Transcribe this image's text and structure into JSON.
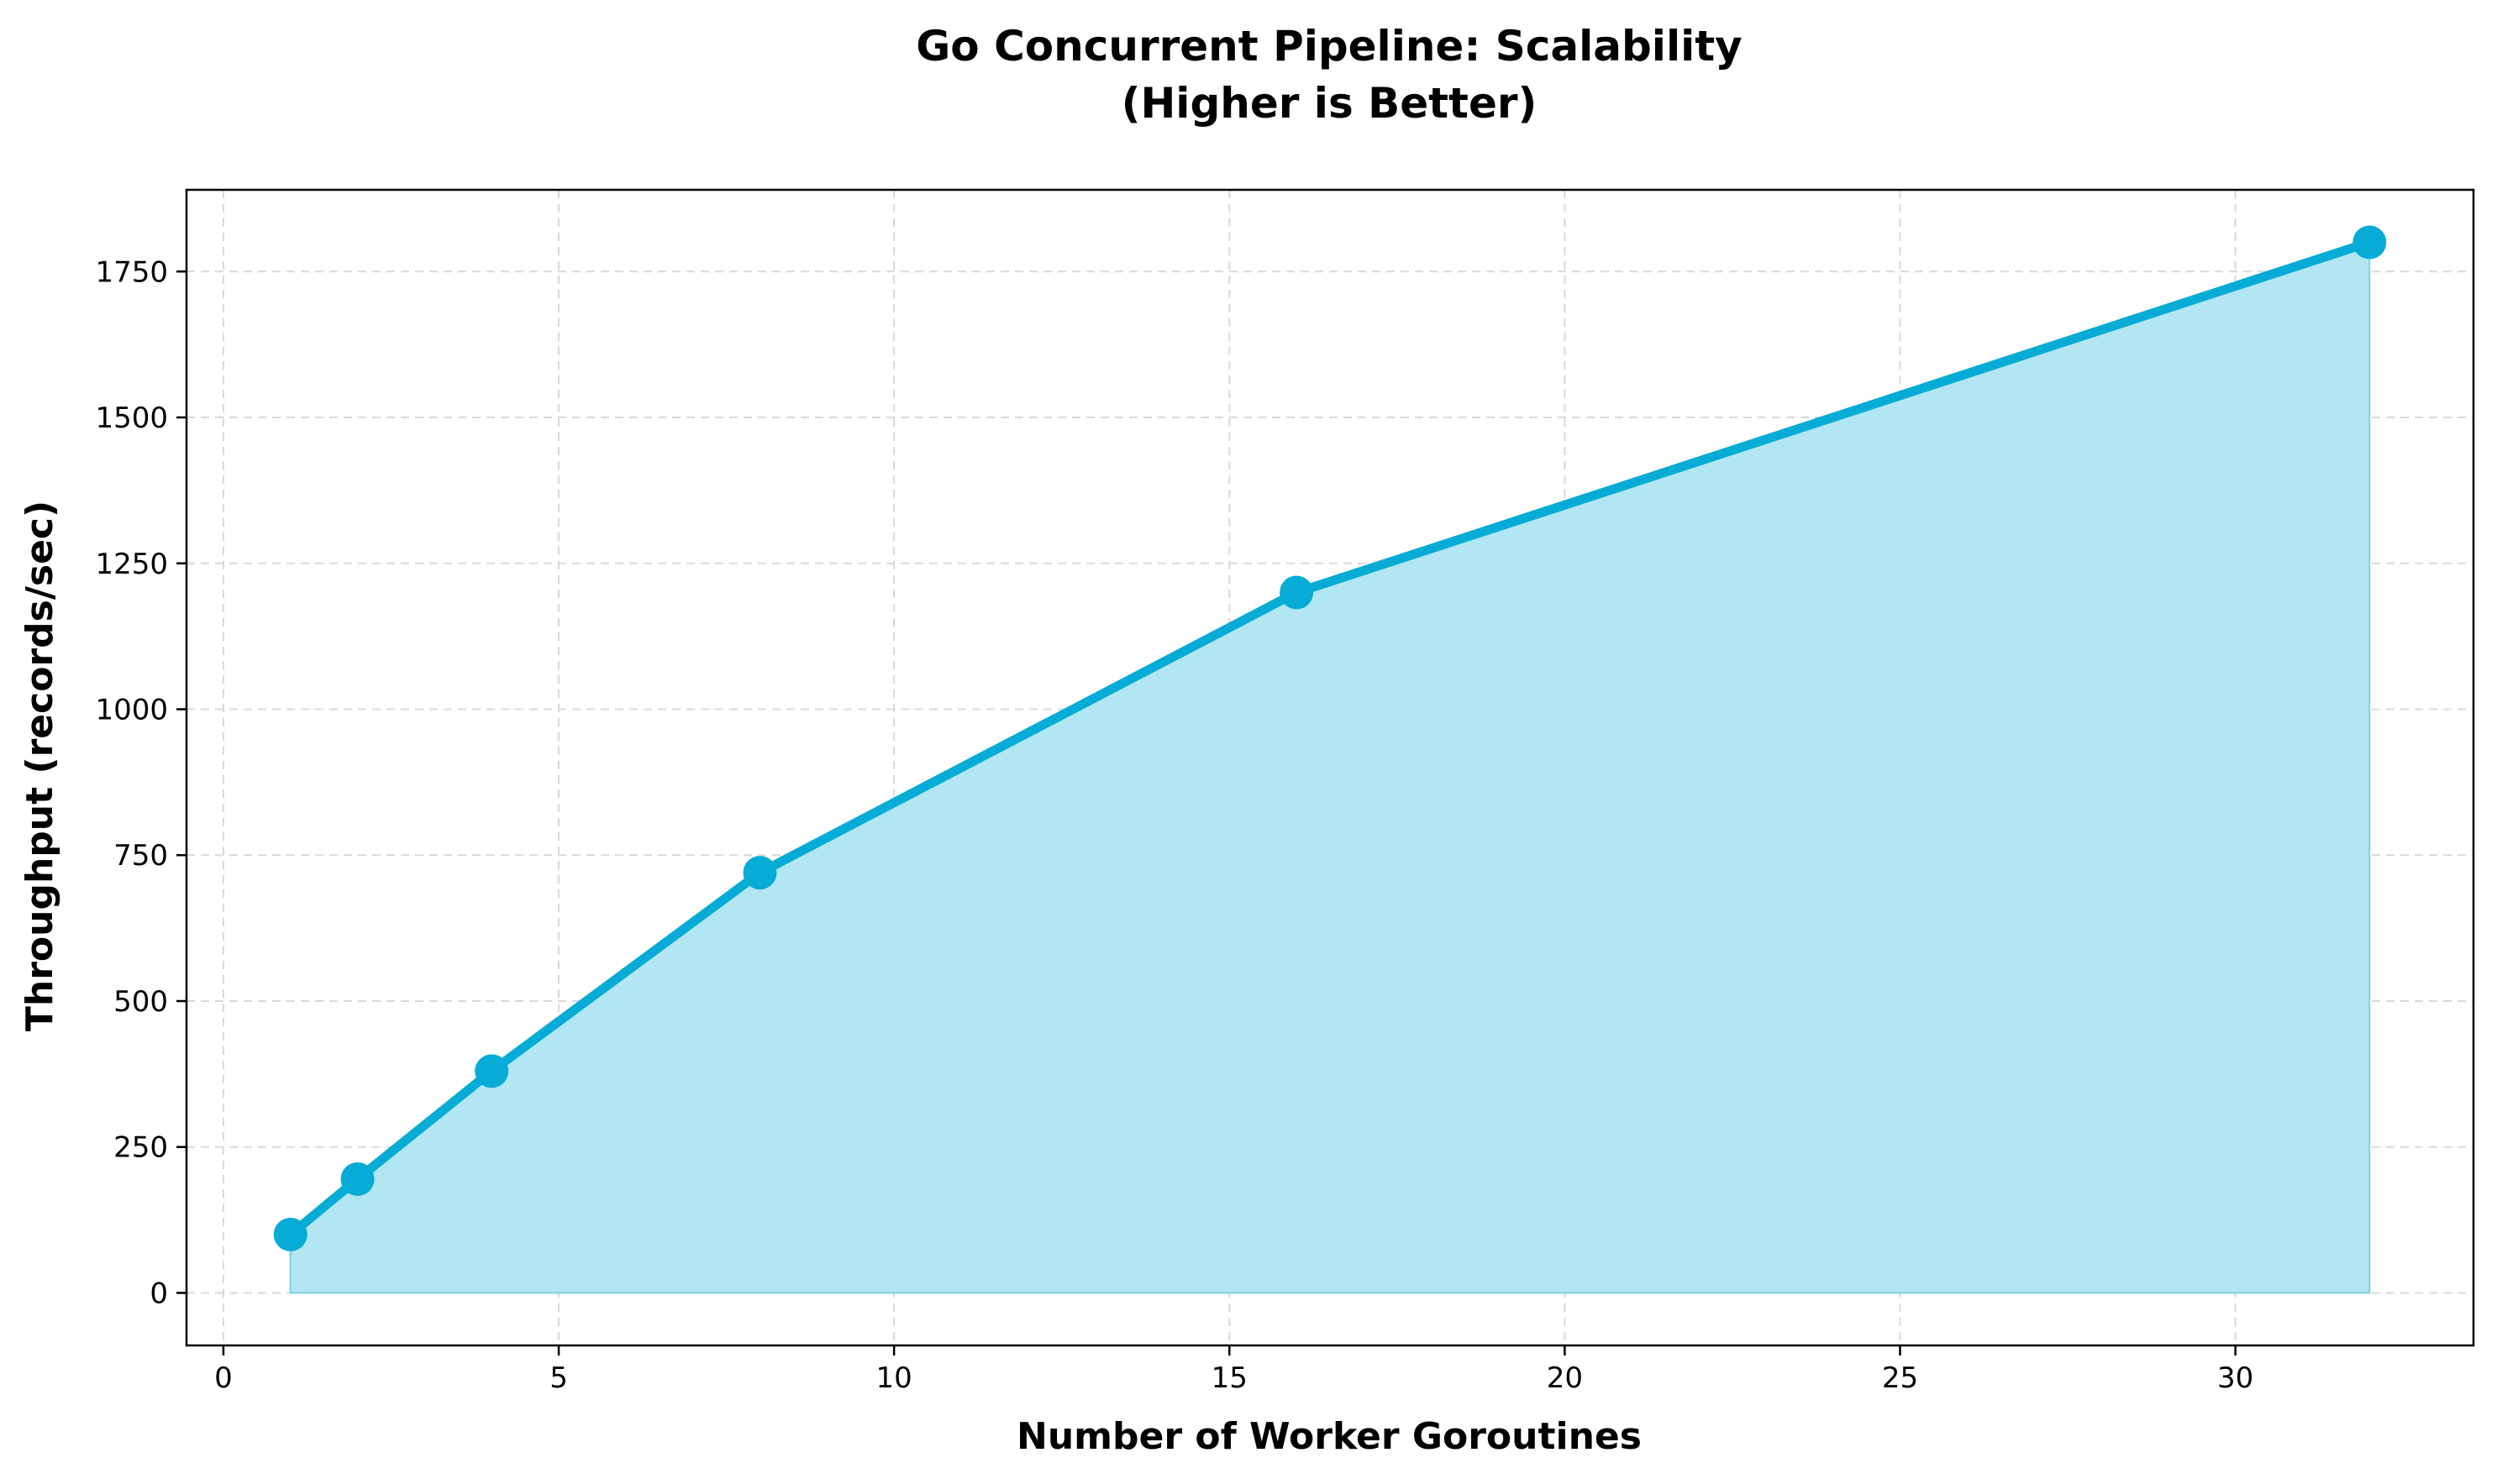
{
  "chart_data": {
    "type": "area",
    "title_line1": "Go Concurrent Pipeline: Scalability",
    "title_line2": "(Higher is Better)",
    "xlabel": "Number of Worker Goroutines",
    "ylabel": "Throughput (records/sec)",
    "xlim": [
      -0.55,
      33.55
    ],
    "ylim": [
      -90,
      1890
    ],
    "xticks": [
      0,
      5,
      10,
      15,
      20,
      25,
      30
    ],
    "yticks": [
      0,
      250,
      500,
      750,
      1000,
      1250,
      1500,
      1750
    ],
    "grid": true,
    "x": [
      1,
      2,
      4,
      8,
      16,
      32
    ],
    "y": [
      100,
      195,
      380,
      720,
      1200,
      1800
    ],
    "colors": {
      "line": "#06acd6",
      "fill": "#b2e6f2",
      "fill_edge": "#7fd0e6",
      "grid": "#d9d9d9",
      "axes": "#000000"
    }
  }
}
